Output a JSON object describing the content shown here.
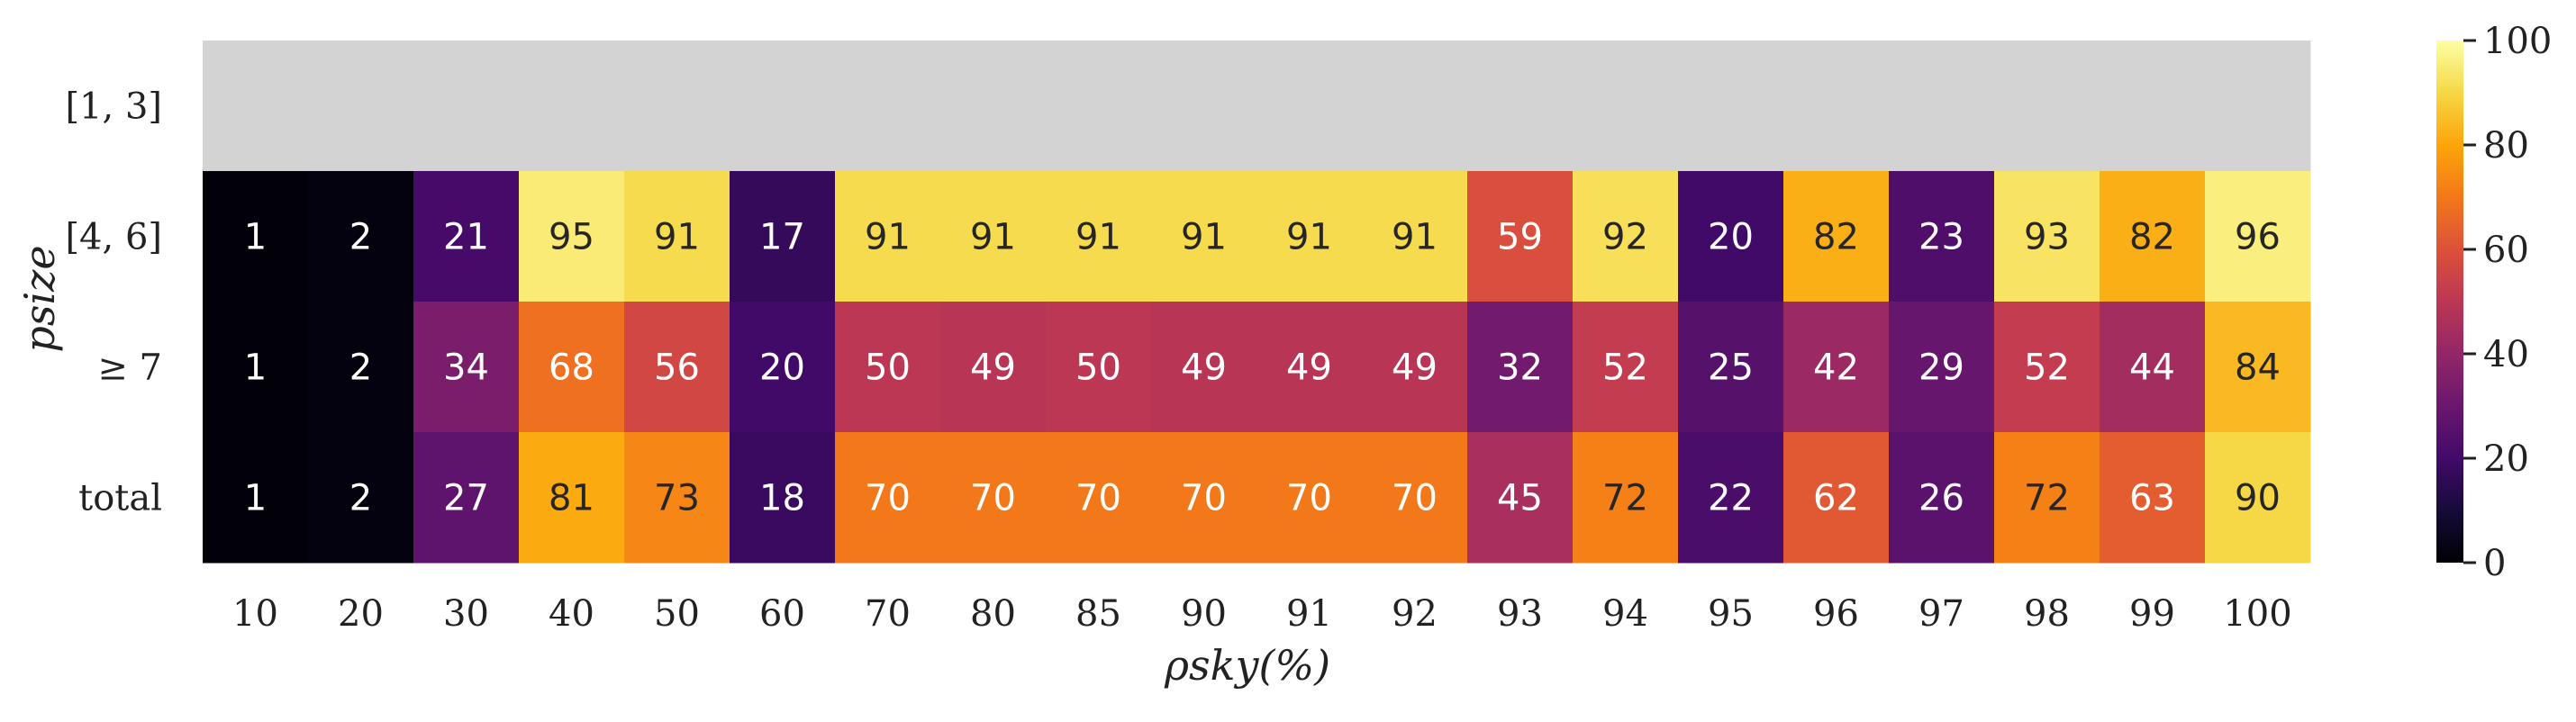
{
  "chart_data": {
    "type": "heatmap",
    "title": "",
    "xlabel": "ρsky(%)",
    "ylabel": "psize",
    "x_categories": [
      "10",
      "20",
      "30",
      "40",
      "50",
      "60",
      "70",
      "80",
      "85",
      "90",
      "91",
      "92",
      "93",
      "94",
      "95",
      "96",
      "97",
      "98",
      "99",
      "100"
    ],
    "y_categories": [
      "[1, 3]",
      "[4, 6]",
      "≥ 7",
      "total"
    ],
    "values": [
      [
        null,
        null,
        null,
        null,
        null,
        null,
        null,
        null,
        null,
        null,
        null,
        null,
        null,
        null,
        null,
        null,
        null,
        null,
        null,
        null
      ],
      [
        1,
        2,
        21,
        95,
        91,
        17,
        91,
        91,
        91,
        91,
        91,
        91,
        59,
        92,
        20,
        82,
        23,
        93,
        82,
        96
      ],
      [
        1,
        2,
        34,
        68,
        56,
        20,
        50,
        49,
        50,
        49,
        49,
        49,
        32,
        52,
        25,
        42,
        29,
        52,
        44,
        84
      ],
      [
        1,
        2,
        27,
        81,
        73,
        18,
        70,
        70,
        70,
        70,
        70,
        70,
        45,
        72,
        22,
        62,
        26,
        72,
        63,
        90
      ]
    ],
    "colormap": "inferno",
    "missing_color": "#d3d3d3",
    "colorbar": {
      "min": 0,
      "max": 100,
      "ticks": [
        0,
        20,
        40,
        60,
        80,
        100
      ]
    }
  }
}
